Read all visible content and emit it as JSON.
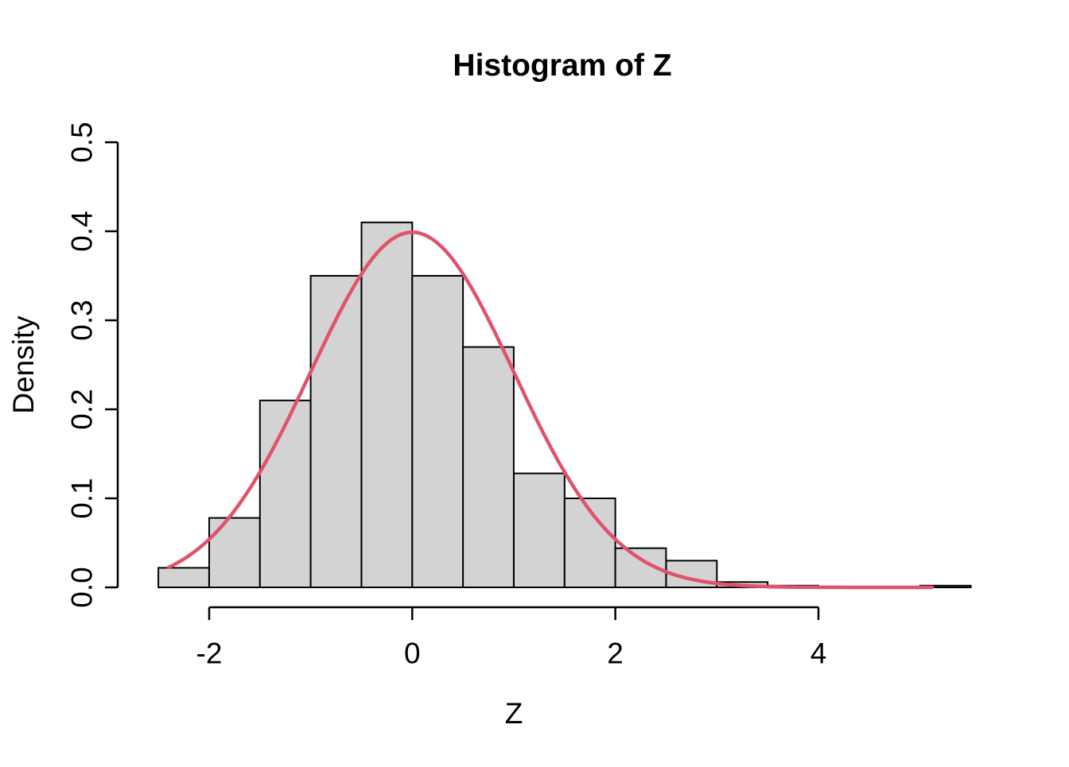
{
  "title": "Histogram of Z",
  "axes": {
    "x": {
      "label": "Z",
      "tick_labels": [
        "-2",
        "0",
        "2",
        "4"
      ]
    },
    "y": {
      "label": "Density",
      "tick_labels": [
        "0.0",
        "0.1",
        "0.2",
        "0.3",
        "0.4",
        "0.5"
      ]
    }
  },
  "chart_data": {
    "type": "bar",
    "subtype": "histogram-with-density-curve",
    "title": "Histogram of Z",
    "xlabel": "Z",
    "ylabel": "Density",
    "bin_edges": [
      -2.5,
      -2.0,
      -1.5,
      -1.0,
      -0.5,
      0.0,
      0.5,
      1.0,
      1.5,
      2.0,
      2.5,
      3.0,
      3.5,
      4.0,
      4.5,
      5.0,
      5.5
    ],
    "densities": [
      0.022,
      0.078,
      0.21,
      0.35,
      0.41,
      0.35,
      0.27,
      0.128,
      0.1,
      0.044,
      0.03,
      0.006,
      0.002,
      0,
      0,
      0.002
    ],
    "x_ticks": [
      -2,
      0,
      2,
      4
    ],
    "x_tick_labels": [
      "-2",
      "0",
      "2",
      "4"
    ],
    "y_ticks": [
      0.0,
      0.1,
      0.2,
      0.3,
      0.4,
      0.5
    ],
    "y_tick_labels": [
      "0.0",
      "0.1",
      "0.2",
      "0.3",
      "0.4",
      "0.5"
    ],
    "xlim": [
      -2.82,
      5.82
    ],
    "ylim": [
      -0.02,
      0.52
    ],
    "grid": false,
    "legend": false,
    "curve": {
      "name": "normal-density",
      "mean": 0,
      "sd": 1,
      "peak_density": 0.3989,
      "x_from": -2.4,
      "x_to": 5.14,
      "color": "#DF536B"
    },
    "colors": {
      "bar_fill": "#D3D3D3",
      "bar_stroke": "#000000",
      "axis": "#000000",
      "text": "#000000",
      "background": "#FFFFFF"
    }
  }
}
